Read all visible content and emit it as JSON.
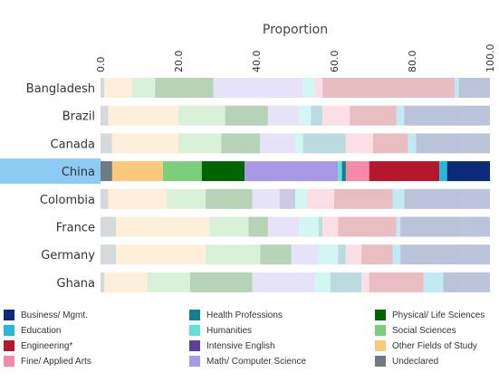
{
  "chart_data": {
    "type": "bar",
    "orientation": "horizontal",
    "stacked": true,
    "xlabel": "Proportion",
    "xlim": [
      0,
      100
    ],
    "xticks": [
      "0.0",
      "20.0",
      "40.0",
      "60.0",
      "80.0",
      "100.0"
    ],
    "categories": [
      "Bangladesh",
      "Brazil",
      "Canada",
      "China",
      "Colombia",
      "France",
      "Germany",
      "Ghana"
    ],
    "highlighted_category": "China",
    "series": [
      {
        "name": "Undeclared",
        "color": "#6e7b83",
        "values": [
          1,
          2,
          3,
          3,
          2,
          4,
          4,
          1
        ]
      },
      {
        "name": "Other Fields of Study",
        "color": "#fbc97c",
        "values": [
          7,
          18,
          17,
          13,
          15,
          24,
          23,
          11
        ]
      },
      {
        "name": "Social Sciences",
        "color": "#7dce7a",
        "values": [
          6,
          12,
          11,
          10,
          10,
          10,
          14,
          11
        ]
      },
      {
        "name": "Physical/ Life Sciences",
        "color": "#006400",
        "values": [
          15,
          11,
          10,
          11,
          12,
          5,
          8,
          16
        ]
      },
      {
        "name": "Math/ Computer Science",
        "color": "#a899e6",
        "values": [
          23,
          8,
          9,
          24,
          7,
          8,
          7,
          16
        ]
      },
      {
        "name": "Intensive English",
        "color": "#5a3f9c",
        "values": [
          0,
          0,
          0,
          0,
          4,
          0,
          0,
          0
        ]
      },
      {
        "name": "Humanities",
        "color": "#5fe3d7",
        "values": [
          3,
          3,
          2,
          1,
          3,
          5,
          5,
          4
        ]
      },
      {
        "name": "Health Professions",
        "color": "#127f8c",
        "values": [
          0,
          3,
          11,
          1,
          0,
          1,
          2,
          8
        ]
      },
      {
        "name": "Fine/ Applied Arts",
        "color": "#f48aa7",
        "values": [
          2,
          7,
          7,
          6,
          7,
          4,
          4,
          2
        ]
      },
      {
        "name": "Engineering*",
        "color": "#b4182d",
        "values": [
          34,
          12,
          9,
          18,
          15,
          15,
          8,
          14
        ]
      },
      {
        "name": "Education",
        "color": "#27b7d9",
        "values": [
          1,
          2,
          2,
          2,
          3,
          1,
          2,
          5
        ]
      },
      {
        "name": "Business/ Mgmt.",
        "color": "#0b2a7a",
        "values": [
          8,
          22,
          19,
          11,
          22,
          23,
          23,
          12
        ]
      }
    ],
    "legend": {
      "placement": "bottom",
      "items": [
        {
          "label": "Business/ Mgmt.",
          "color": "#0b2a7a"
        },
        {
          "label": "Health Professions",
          "color": "#127f8c"
        },
        {
          "label": "Physical/ Life Sciences",
          "color": "#006400"
        },
        {
          "label": "Education",
          "color": "#27b7d9"
        },
        {
          "label": "Humanities",
          "color": "#5fe3d7"
        },
        {
          "label": "Social Sciences",
          "color": "#7dce7a"
        },
        {
          "label": "Engineering*",
          "color": "#b4182d"
        },
        {
          "label": "Intensive English",
          "color": "#5a3f9c"
        },
        {
          "label": "Other Fields of Study",
          "color": "#fbc97c"
        },
        {
          "label": "Fine/ Applied Arts",
          "color": "#f48aa7"
        },
        {
          "label": "Math/ Computer Science",
          "color": "#a899e6"
        },
        {
          "label": "Undeclared",
          "color": "#6e7b83"
        }
      ]
    }
  }
}
